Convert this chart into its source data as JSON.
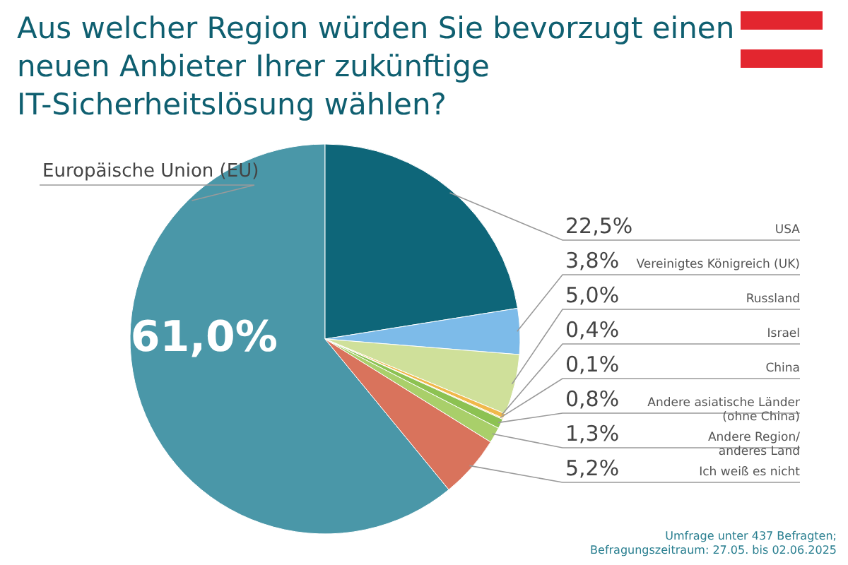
{
  "chart_data": {
    "type": "pie",
    "title": "Aus welcher Region würden Sie bevorzugt einen neuen Anbieter Ihrer zukünftige IT-Sicherheitslösung wählen?",
    "categories": [
      "Europäische Union (EU)",
      "USA",
      "Vereinigtes Königreich (UK)",
      "Russland",
      "Israel",
      "China",
      "Andere asiatische Länder (ohne China)",
      "Andere Region/ anderes Land",
      "Ich weiß es nicht"
    ],
    "values": [
      61.0,
      22.5,
      3.8,
      5.0,
      0.4,
      0.1,
      0.8,
      1.3,
      5.2
    ],
    "value_labels": [
      "61,0%",
      "22,5%",
      "3,8%",
      "5,0%",
      "0,4%",
      "0,1%",
      "0,8%",
      "1,3%",
      "5,2%"
    ],
    "colors": [
      "#4a97a8",
      "#0e6679",
      "#7dbbe9",
      "#cfe09a",
      "#f0b84a",
      "#f7dc8a",
      "#8cc252",
      "#a9cf6a",
      "#d9735c"
    ],
    "annotations": [
      "Umfrage unter 437 Befragten; Befragungszeitraum: 27.05. bis 02.06.2025"
    ]
  }
}
